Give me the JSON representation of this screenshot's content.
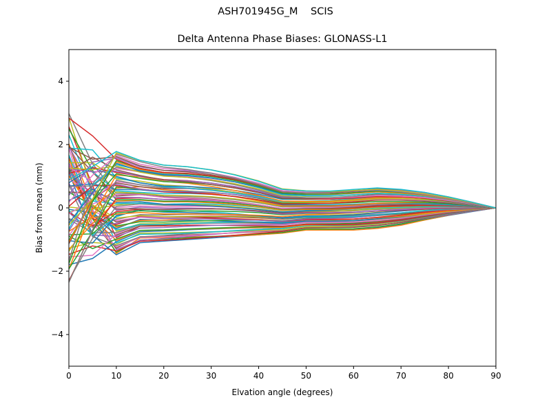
{
  "figure": {
    "suptitle": "ASH701945G_M    SCIS",
    "title": "Delta Antenna Phase Biases: GLONASS-L1"
  },
  "chart_data": {
    "type": "line",
    "title": "Delta Antenna Phase Biases: GLONASS-L1",
    "suptitle": "ASH701945G_M    SCIS",
    "xlabel": "Elvation angle (degrees)",
    "ylabel": "Bias from mean (mm)",
    "xlim": [
      0,
      90
    ],
    "ylim": [
      -5,
      5
    ],
    "xticks": [
      0,
      10,
      20,
      30,
      40,
      50,
      60,
      70,
      80,
      90
    ],
    "yticks": [
      -4,
      -2,
      0,
      2,
      4
    ],
    "grid": false,
    "legend": null,
    "x": [
      0,
      5,
      10,
      15,
      20,
      25,
      30,
      35,
      40,
      45,
      50,
      55,
      60,
      65,
      70,
      75,
      80,
      85,
      90
    ],
    "envelope_upper": [
      3.0,
      2.3,
      1.8,
      1.5,
      1.35,
      1.3,
      1.2,
      1.05,
      0.85,
      0.6,
      0.55,
      0.55,
      0.6,
      0.65,
      0.6,
      0.5,
      0.35,
      0.18,
      0.0
    ],
    "envelope_lower": [
      -2.4,
      -2.1,
      -1.5,
      -1.1,
      -1.05,
      -1.0,
      -0.95,
      -0.9,
      -0.85,
      -0.8,
      -0.7,
      -0.7,
      -0.7,
      -0.65,
      -0.55,
      -0.4,
      -0.25,
      -0.12,
      0.0
    ],
    "series_count": 80,
    "series_colors": [
      "#1f77b4",
      "#ff7f0e",
      "#2ca02c",
      "#d62728",
      "#9467bd",
      "#8c564b",
      "#e377c2",
      "#7f7f7f",
      "#bcbd22",
      "#17becf"
    ],
    "series_note": "Approximately 80 unlabeled series (one per satellite/frequency channel), all converging to 0 at 90 degrees; spread is largest at 0-10 degrees (about -2.4 to +3.0 mm)."
  }
}
